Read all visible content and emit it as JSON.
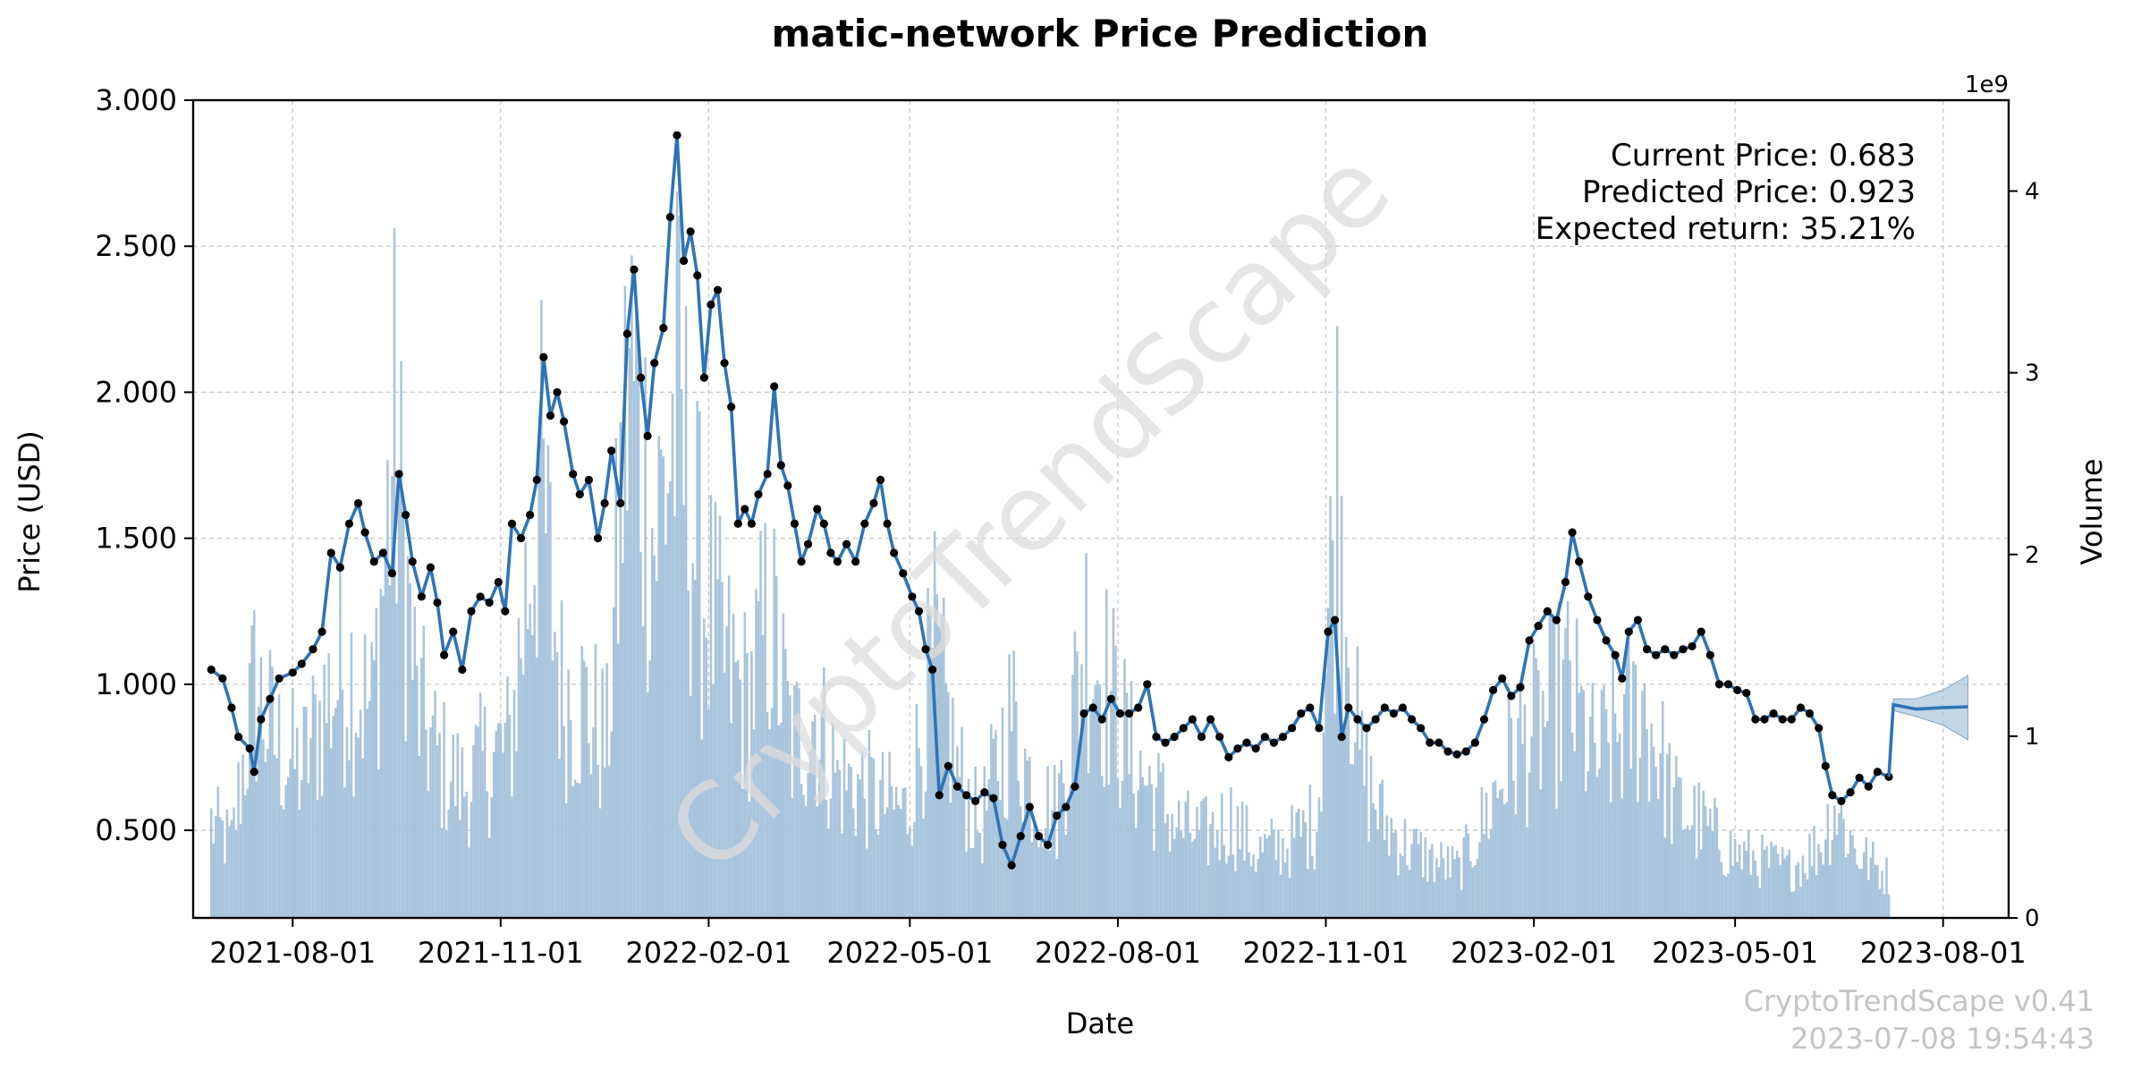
{
  "chart_data": {
    "type": "line",
    "title": "matic-network Price Prediction",
    "xlabel": "Date",
    "ylabel": "Price (USD)",
    "y2label": "Volume",
    "y2_exponent_label": "1e9",
    "xlim": [
      "2021-06-18",
      "2023-08-30"
    ],
    "ylim": [
      0.2,
      3.0
    ],
    "y2lim": [
      0,
      4.5
    ],
    "grid": true,
    "x_ticks": [
      "2021-08-01",
      "2021-11-01",
      "2022-02-01",
      "2022-05-01",
      "2022-08-01",
      "2022-11-01",
      "2023-02-01",
      "2023-05-01",
      "2023-08-01"
    ],
    "y_ticks": [
      "0.500",
      "1.000",
      "1.500",
      "2.000",
      "2.500",
      "3.000"
    ],
    "y2_ticks": [
      "0",
      "1",
      "2",
      "3",
      "4"
    ],
    "annotations": {
      "current_price": "Current Price: 0.683",
      "predicted_price": "Predicted Price: 0.923",
      "expected_return": "Expected return: 35.21%"
    },
    "price_series": {
      "name": "",
      "points": [
        [
          "2021-06-26",
          1.05
        ],
        [
          "2021-07-01",
          1.02
        ],
        [
          "2021-07-05",
          0.92
        ],
        [
          "2021-07-08",
          0.82
        ],
        [
          "2021-07-13",
          0.78
        ],
        [
          "2021-07-15",
          0.7
        ],
        [
          "2021-07-18",
          0.88
        ],
        [
          "2021-07-22",
          0.95
        ],
        [
          "2021-07-26",
          1.02
        ],
        [
          "2021-08-01",
          1.04
        ],
        [
          "2021-08-05",
          1.07
        ],
        [
          "2021-08-10",
          1.12
        ],
        [
          "2021-08-14",
          1.18
        ],
        [
          "2021-08-18",
          1.45
        ],
        [
          "2021-08-22",
          1.4
        ],
        [
          "2021-08-26",
          1.55
        ],
        [
          "2021-08-30",
          1.62
        ],
        [
          "2021-09-02",
          1.52
        ],
        [
          "2021-09-06",
          1.42
        ],
        [
          "2021-09-10",
          1.45
        ],
        [
          "2021-09-14",
          1.38
        ],
        [
          "2021-09-17",
          1.72
        ],
        [
          "2021-09-20",
          1.58
        ],
        [
          "2021-09-23",
          1.42
        ],
        [
          "2021-09-27",
          1.3
        ],
        [
          "2021-10-01",
          1.4
        ],
        [
          "2021-10-04",
          1.28
        ],
        [
          "2021-10-07",
          1.1
        ],
        [
          "2021-10-11",
          1.18
        ],
        [
          "2021-10-15",
          1.05
        ],
        [
          "2021-10-19",
          1.25
        ],
        [
          "2021-10-23",
          1.3
        ],
        [
          "2021-10-27",
          1.28
        ],
        [
          "2021-10-31",
          1.35
        ],
        [
          "2021-11-03",
          1.25
        ],
        [
          "2021-11-06",
          1.55
        ],
        [
          "2021-11-10",
          1.5
        ],
        [
          "2021-11-14",
          1.58
        ],
        [
          "2021-11-17",
          1.7
        ],
        [
          "2021-11-20",
          2.12
        ],
        [
          "2021-11-23",
          1.92
        ],
        [
          "2021-11-26",
          2.0
        ],
        [
          "2021-11-29",
          1.9
        ],
        [
          "2021-12-03",
          1.72
        ],
        [
          "2021-12-06",
          1.65
        ],
        [
          "2021-12-10",
          1.7
        ],
        [
          "2021-12-14",
          1.5
        ],
        [
          "2021-12-17",
          1.62
        ],
        [
          "2021-12-20",
          1.8
        ],
        [
          "2021-12-24",
          1.62
        ],
        [
          "2021-12-27",
          2.2
        ],
        [
          "2021-12-30",
          2.42
        ],
        [
          "2022-01-02",
          2.05
        ],
        [
          "2022-01-05",
          1.85
        ],
        [
          "2022-01-08",
          2.1
        ],
        [
          "2022-01-12",
          2.22
        ],
        [
          "2022-01-15",
          2.6
        ],
        [
          "2022-01-18",
          2.88
        ],
        [
          "2022-01-21",
          2.45
        ],
        [
          "2022-01-24",
          2.55
        ],
        [
          "2022-01-27",
          2.4
        ],
        [
          "2022-01-30",
          2.05
        ],
        [
          "2022-02-02",
          2.3
        ],
        [
          "2022-02-05",
          2.35
        ],
        [
          "2022-02-08",
          2.1
        ],
        [
          "2022-02-11",
          1.95
        ],
        [
          "2022-02-14",
          1.55
        ],
        [
          "2022-02-17",
          1.6
        ],
        [
          "2022-02-20",
          1.55
        ],
        [
          "2022-02-23",
          1.65
        ],
        [
          "2022-02-27",
          1.72
        ],
        [
          "2022-03-02",
          2.02
        ],
        [
          "2022-03-05",
          1.75
        ],
        [
          "2022-03-08",
          1.68
        ],
        [
          "2022-03-11",
          1.55
        ],
        [
          "2022-03-14",
          1.42
        ],
        [
          "2022-03-17",
          1.48
        ],
        [
          "2022-03-21",
          1.6
        ],
        [
          "2022-03-24",
          1.55
        ],
        [
          "2022-03-27",
          1.45
        ],
        [
          "2022-03-30",
          1.42
        ],
        [
          "2022-04-03",
          1.48
        ],
        [
          "2022-04-07",
          1.42
        ],
        [
          "2022-04-11",
          1.55
        ],
        [
          "2022-04-15",
          1.62
        ],
        [
          "2022-04-18",
          1.7
        ],
        [
          "2022-04-21",
          1.55
        ],
        [
          "2022-04-24",
          1.45
        ],
        [
          "2022-04-28",
          1.38
        ],
        [
          "2022-05-02",
          1.3
        ],
        [
          "2022-05-05",
          1.25
        ],
        [
          "2022-05-08",
          1.12
        ],
        [
          "2022-05-11",
          1.05
        ],
        [
          "2022-05-14",
          0.62
        ],
        [
          "2022-05-18",
          0.72
        ],
        [
          "2022-05-22",
          0.65
        ],
        [
          "2022-05-26",
          0.62
        ],
        [
          "2022-05-30",
          0.6
        ],
        [
          "2022-06-03",
          0.63
        ],
        [
          "2022-06-07",
          0.61
        ],
        [
          "2022-06-11",
          0.45
        ],
        [
          "2022-06-15",
          0.38
        ],
        [
          "2022-06-19",
          0.48
        ],
        [
          "2022-06-23",
          0.58
        ],
        [
          "2022-06-27",
          0.48
        ],
        [
          "2022-07-01",
          0.45
        ],
        [
          "2022-07-05",
          0.55
        ],
        [
          "2022-07-09",
          0.58
        ],
        [
          "2022-07-13",
          0.65
        ],
        [
          "2022-07-17",
          0.9
        ],
        [
          "2022-07-21",
          0.92
        ],
        [
          "2022-07-25",
          0.88
        ],
        [
          "2022-07-29",
          0.95
        ],
        [
          "2022-08-02",
          0.9
        ],
        [
          "2022-08-06",
          0.9
        ],
        [
          "2022-08-10",
          0.92
        ],
        [
          "2022-08-14",
          1.0
        ],
        [
          "2022-08-18",
          0.82
        ],
        [
          "2022-08-22",
          0.8
        ],
        [
          "2022-08-26",
          0.82
        ],
        [
          "2022-08-30",
          0.85
        ],
        [
          "2022-09-03",
          0.88
        ],
        [
          "2022-09-07",
          0.82
        ],
        [
          "2022-09-11",
          0.88
        ],
        [
          "2022-09-15",
          0.82
        ],
        [
          "2022-09-19",
          0.75
        ],
        [
          "2022-09-23",
          0.78
        ],
        [
          "2022-09-27",
          0.8
        ],
        [
          "2022-10-01",
          0.78
        ],
        [
          "2022-10-05",
          0.82
        ],
        [
          "2022-10-09",
          0.8
        ],
        [
          "2022-10-13",
          0.82
        ],
        [
          "2022-10-17",
          0.85
        ],
        [
          "2022-10-21",
          0.9
        ],
        [
          "2022-10-25",
          0.92
        ],
        [
          "2022-10-29",
          0.85
        ],
        [
          "2022-11-02",
          1.18
        ],
        [
          "2022-11-05",
          1.22
        ],
        [
          "2022-11-08",
          0.82
        ],
        [
          "2022-11-11",
          0.92
        ],
        [
          "2022-11-15",
          0.88
        ],
        [
          "2022-11-19",
          0.85
        ],
        [
          "2022-11-23",
          0.88
        ],
        [
          "2022-11-27",
          0.92
        ],
        [
          "2022-12-01",
          0.9
        ],
        [
          "2022-12-05",
          0.92
        ],
        [
          "2022-12-09",
          0.88
        ],
        [
          "2022-12-13",
          0.85
        ],
        [
          "2022-12-17",
          0.8
        ],
        [
          "2022-12-21",
          0.8
        ],
        [
          "2022-12-25",
          0.77
        ],
        [
          "2022-12-29",
          0.76
        ],
        [
          "2023-01-02",
          0.77
        ],
        [
          "2023-01-06",
          0.8
        ],
        [
          "2023-01-10",
          0.88
        ],
        [
          "2023-01-14",
          0.98
        ],
        [
          "2023-01-18",
          1.02
        ],
        [
          "2023-01-22",
          0.96
        ],
        [
          "2023-01-26",
          0.99
        ],
        [
          "2023-01-30",
          1.15
        ],
        [
          "2023-02-03",
          1.2
        ],
        [
          "2023-02-07",
          1.25
        ],
        [
          "2023-02-11",
          1.22
        ],
        [
          "2023-02-15",
          1.35
        ],
        [
          "2023-02-18",
          1.52
        ],
        [
          "2023-02-21",
          1.42
        ],
        [
          "2023-02-25",
          1.3
        ],
        [
          "2023-03-01",
          1.22
        ],
        [
          "2023-03-05",
          1.15
        ],
        [
          "2023-03-09",
          1.1
        ],
        [
          "2023-03-12",
          1.02
        ],
        [
          "2023-03-15",
          1.18
        ],
        [
          "2023-03-19",
          1.22
        ],
        [
          "2023-03-23",
          1.12
        ],
        [
          "2023-03-27",
          1.1
        ],
        [
          "2023-03-31",
          1.12
        ],
        [
          "2023-04-04",
          1.1
        ],
        [
          "2023-04-08",
          1.12
        ],
        [
          "2023-04-12",
          1.13
        ],
        [
          "2023-04-16",
          1.18
        ],
        [
          "2023-04-20",
          1.1
        ],
        [
          "2023-04-24",
          1.0
        ],
        [
          "2023-04-28",
          1.0
        ],
        [
          "2023-05-02",
          0.98
        ],
        [
          "2023-05-06",
          0.97
        ],
        [
          "2023-05-10",
          0.88
        ],
        [
          "2023-05-14",
          0.88
        ],
        [
          "2023-05-18",
          0.9
        ],
        [
          "2023-05-22",
          0.88
        ],
        [
          "2023-05-26",
          0.88
        ],
        [
          "2023-05-30",
          0.92
        ],
        [
          "2023-06-03",
          0.9
        ],
        [
          "2023-06-07",
          0.85
        ],
        [
          "2023-06-10",
          0.72
        ],
        [
          "2023-06-13",
          0.62
        ],
        [
          "2023-06-17",
          0.6
        ],
        [
          "2023-06-21",
          0.63
        ],
        [
          "2023-06-25",
          0.68
        ],
        [
          "2023-06-29",
          0.65
        ],
        [
          "2023-07-03",
          0.7
        ],
        [
          "2023-07-08",
          0.683
        ]
      ]
    },
    "forecast_series": {
      "name": "",
      "points": [
        [
          "2023-07-08",
          0.683
        ],
        [
          "2023-07-10",
          0.93
        ],
        [
          "2023-07-20",
          0.915
        ],
        [
          "2023-08-01",
          0.92
        ],
        [
          "2023-08-12",
          0.923
        ]
      ],
      "band_upper": [
        [
          "2023-07-10",
          0.95
        ],
        [
          "2023-07-20",
          0.95
        ],
        [
          "2023-08-01",
          0.98
        ],
        [
          "2023-08-12",
          1.03
        ]
      ],
      "band_lower": [
        [
          "2023-07-10",
          0.91
        ],
        [
          "2023-07-20",
          0.89
        ],
        [
          "2023-08-01",
          0.86
        ],
        [
          "2023-08-12",
          0.81
        ]
      ]
    },
    "volume_series": {
      "name": "",
      "unit_scale": 1000000000,
      "points": [
        [
          "2021-06-26",
          0.58
        ],
        [
          "2021-07-05",
          0.45
        ],
        [
          "2021-07-15",
          1.4
        ],
        [
          "2021-07-25",
          1.05
        ],
        [
          "2021-08-05",
          0.9
        ],
        [
          "2021-08-15",
          1.3
        ],
        [
          "2021-08-25",
          1.55
        ],
        [
          "2021-09-05",
          1.25
        ],
        [
          "2021-09-15",
          2.9
        ],
        [
          "2021-09-25",
          1.3
        ],
        [
          "2021-10-05",
          0.95
        ],
        [
          "2021-10-15",
          0.8
        ],
        [
          "2021-10-25",
          0.95
        ],
        [
          "2021-11-05",
          1.05
        ],
        [
          "2021-11-18",
          2.7
        ],
        [
          "2021-11-28",
          1.4
        ],
        [
          "2021-12-08",
          1.3
        ],
        [
          "2021-12-18",
          1.05
        ],
        [
          "2021-12-28",
          3.4
        ],
        [
          "2022-01-08",
          2.3
        ],
        [
          "2022-01-18",
          3.1
        ],
        [
          "2022-01-28",
          2.1
        ],
        [
          "2022-02-08",
          1.55
        ],
        [
          "2022-02-18",
          1.3
        ],
        [
          "2022-02-28",
          1.85
        ],
        [
          "2022-03-10",
          1.05
        ],
        [
          "2022-03-20",
          1.25
        ],
        [
          "2022-03-30",
          0.85
        ],
        [
          "2022-04-10",
          0.8
        ],
        [
          "2022-04-20",
          0.7
        ],
        [
          "2022-04-30",
          0.65
        ],
        [
          "2022-05-12",
          1.6
        ],
        [
          "2022-05-22",
          0.9
        ],
        [
          "2022-06-01",
          0.55
        ],
        [
          "2022-06-15",
          1.25
        ],
        [
          "2022-06-25",
          0.75
        ],
        [
          "2022-07-05",
          0.65
        ],
        [
          "2022-07-18",
          1.75
        ],
        [
          "2022-07-28",
          1.4
        ],
        [
          "2022-08-08",
          0.95
        ],
        [
          "2022-08-18",
          0.75
        ],
        [
          "2022-08-28",
          0.55
        ],
        [
          "2022-09-08",
          0.5
        ],
        [
          "2022-09-20",
          0.6
        ],
        [
          "2022-10-01",
          0.4
        ],
        [
          "2022-10-15",
          0.45
        ],
        [
          "2022-10-28",
          0.6
        ],
        [
          "2022-11-06",
          2.7
        ],
        [
          "2022-11-16",
          0.95
        ],
        [
          "2022-11-26",
          0.6
        ],
        [
          "2022-12-06",
          0.45
        ],
        [
          "2022-12-18",
          0.35
        ],
        [
          "2022-12-30",
          0.3
        ],
        [
          "2023-01-10",
          0.6
        ],
        [
          "2023-01-22",
          1.0
        ],
        [
          "2023-02-03",
          1.15
        ],
        [
          "2023-02-16",
          1.4
        ],
        [
          "2023-02-28",
          0.95
        ],
        [
          "2023-03-12",
          1.15
        ],
        [
          "2023-03-22",
          1.3
        ],
        [
          "2023-04-04",
          0.7
        ],
        [
          "2023-04-18",
          0.55
        ],
        [
          "2023-04-30",
          0.4
        ],
        [
          "2023-05-12",
          0.35
        ],
        [
          "2023-05-25",
          0.3
        ],
        [
          "2023-06-08",
          0.45
        ],
        [
          "2023-06-14",
          0.7
        ],
        [
          "2023-06-24",
          0.4
        ],
        [
          "2023-07-08",
          0.25
        ]
      ]
    },
    "colors": {
      "price_line": "#2f73b5",
      "price_marker": "#000000",
      "volume_bar": "#a8c4dc",
      "forecast_band": "#a8c4dc",
      "grid": "#c8c8c8",
      "watermark": "#dcdcdc",
      "footer": "#c4c4c4"
    },
    "watermark": "CryptoTrendScape"
  },
  "footer": {
    "version": "CryptoTrendScape v0.41",
    "timestamp": "2023-07-08 19:54:43"
  }
}
